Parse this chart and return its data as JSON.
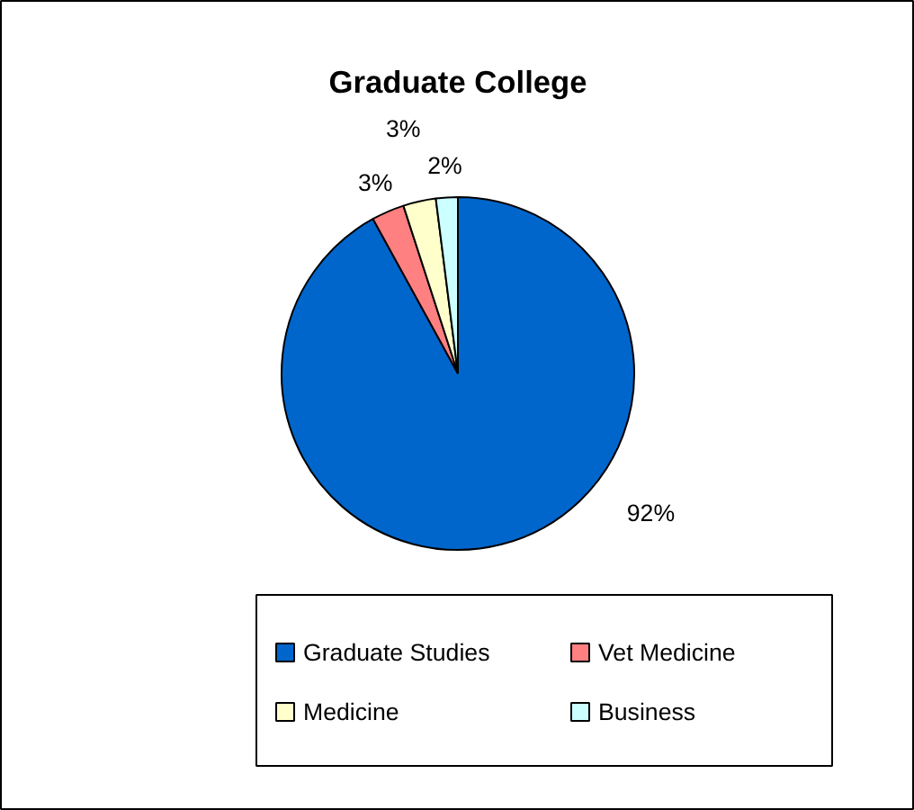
{
  "chart_data": {
    "type": "pie",
    "title": "Graduate College",
    "categories": [
      "Graduate Studies",
      "Vet Medicine",
      "Medicine",
      "Business"
    ],
    "values": [
      92,
      3,
      3,
      2
    ],
    "colors": [
      "#0066cc",
      "#ff8080",
      "#ffffcc",
      "#ccffff"
    ],
    "value_labels": [
      "92%",
      "3%",
      "3%",
      "2%"
    ],
    "legend": "bottom"
  }
}
